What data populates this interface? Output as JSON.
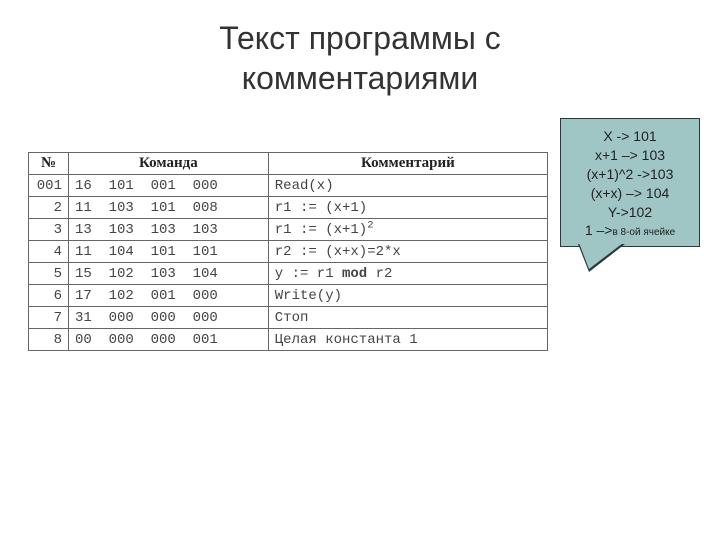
{
  "title_line1": "Текст программы с",
  "title_line2": "комментариями",
  "table": {
    "headers": {
      "num": "№",
      "cmd": "Команда",
      "comment": "Комментарий"
    },
    "rows": [
      {
        "num": "001",
        "cmd": "16  101  001  000",
        "comment": "Read(x)"
      },
      {
        "num": "2",
        "cmd": "11  103  101  008",
        "comment": "r1 := (x+1)"
      },
      {
        "num": "3",
        "cmd": "13  103  103  103",
        "comment_html": "r1 := (x+1)<sup>2</sup>"
      },
      {
        "num": "4",
        "cmd": "11  104  101  101",
        "comment": "r2 := (x+x)=2*x"
      },
      {
        "num": "5",
        "cmd": "15  102  103  104",
        "comment_html": "y := r1 <b>mod</b> r2"
      },
      {
        "num": "6",
        "cmd": "17  102  001  000",
        "comment": "Write(y)"
      },
      {
        "num": "7",
        "cmd": "31  000  000  000",
        "comment": "Стоп"
      },
      {
        "num": "8",
        "cmd": "00  000  000  001",
        "comment": "Целая константа 1"
      }
    ]
  },
  "callout": {
    "lines": [
      "X -> 101",
      "x+1 –> 103",
      "(x+1)^2 ->103",
      "(x+x) –> 104",
      "Y->102"
    ],
    "last_prefix": "1 –>",
    "last_small": "в 8-ой ячейке",
    "bg": "#9fc5c5",
    "border": "#2a3a3a"
  }
}
